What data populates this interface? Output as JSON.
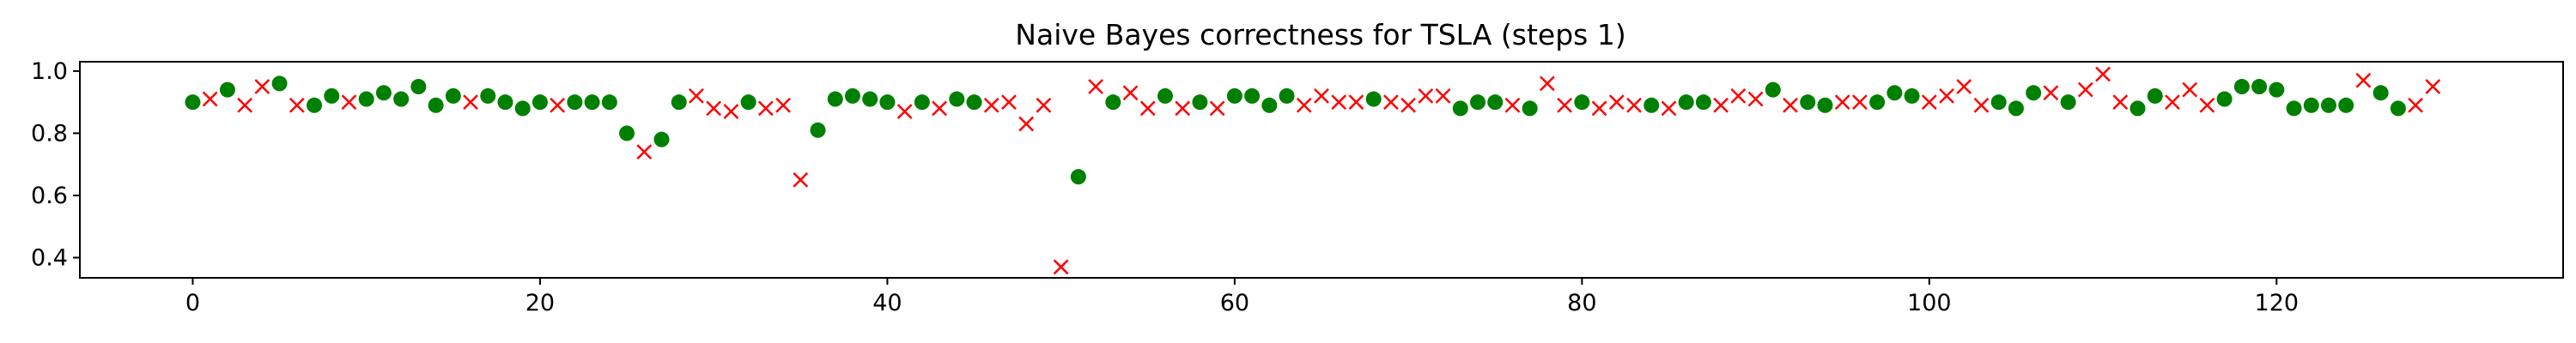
{
  "chart_data": {
    "type": "scatter",
    "title": "Naive Bayes correctness for TSLA (steps 1)",
    "xlabel": "",
    "ylabel": "",
    "xlim": [
      -6.5,
      136.5
    ],
    "ylim": [
      0.335,
      1.03
    ],
    "x_ticks": [
      0,
      20,
      40,
      60,
      80,
      100,
      120
    ],
    "y_ticks": [
      0.4,
      0.6,
      0.8,
      1.0
    ],
    "x_tick_labels": [
      "0",
      "20",
      "40",
      "60",
      "80",
      "100",
      "120"
    ],
    "y_tick_labels": [
      "0.4",
      "0.6",
      "0.8",
      "1.0"
    ],
    "grid": false,
    "legend": "none",
    "marker_colors": {
      "correct": "#008000",
      "incorrect": "#ff0000"
    },
    "points": [
      [
        0,
        0.9,
        "o"
      ],
      [
        1,
        0.91,
        "x"
      ],
      [
        2,
        0.94,
        "o"
      ],
      [
        3,
        0.89,
        "x"
      ],
      [
        4,
        0.95,
        "x"
      ],
      [
        5,
        0.96,
        "o"
      ],
      [
        6,
        0.89,
        "x"
      ],
      [
        7,
        0.89,
        "o"
      ],
      [
        8,
        0.92,
        "o"
      ],
      [
        9,
        0.9,
        "x"
      ],
      [
        10,
        0.91,
        "o"
      ],
      [
        11,
        0.93,
        "o"
      ],
      [
        12,
        0.91,
        "o"
      ],
      [
        13,
        0.95,
        "o"
      ],
      [
        14,
        0.89,
        "o"
      ],
      [
        15,
        0.92,
        "o"
      ],
      [
        16,
        0.9,
        "x"
      ],
      [
        17,
        0.92,
        "o"
      ],
      [
        18,
        0.9,
        "o"
      ],
      [
        19,
        0.88,
        "o"
      ],
      [
        20,
        0.9,
        "o"
      ],
      [
        21,
        0.89,
        "x"
      ],
      [
        22,
        0.9,
        "o"
      ],
      [
        23,
        0.9,
        "o"
      ],
      [
        24,
        0.9,
        "o"
      ],
      [
        25,
        0.8,
        "o"
      ],
      [
        26,
        0.74,
        "x"
      ],
      [
        27,
        0.78,
        "o"
      ],
      [
        28,
        0.9,
        "o"
      ],
      [
        29,
        0.92,
        "x"
      ],
      [
        30,
        0.88,
        "x"
      ],
      [
        31,
        0.87,
        "x"
      ],
      [
        32,
        0.9,
        "o"
      ],
      [
        33,
        0.88,
        "x"
      ],
      [
        34,
        0.89,
        "x"
      ],
      [
        35,
        0.65,
        "x"
      ],
      [
        36,
        0.81,
        "o"
      ],
      [
        37,
        0.91,
        "o"
      ],
      [
        38,
        0.92,
        "o"
      ],
      [
        39,
        0.91,
        "o"
      ],
      [
        40,
        0.9,
        "o"
      ],
      [
        41,
        0.87,
        "x"
      ],
      [
        42,
        0.9,
        "o"
      ],
      [
        43,
        0.88,
        "x"
      ],
      [
        44,
        0.91,
        "o"
      ],
      [
        45,
        0.9,
        "o"
      ],
      [
        46,
        0.89,
        "x"
      ],
      [
        47,
        0.9,
        "x"
      ],
      [
        48,
        0.83,
        "x"
      ],
      [
        49,
        0.89,
        "x"
      ],
      [
        50,
        0.37,
        "x"
      ],
      [
        51,
        0.66,
        "o"
      ],
      [
        52,
        0.95,
        "x"
      ],
      [
        53,
        0.9,
        "o"
      ],
      [
        54,
        0.93,
        "x"
      ],
      [
        55,
        0.88,
        "x"
      ],
      [
        56,
        0.92,
        "o"
      ],
      [
        57,
        0.88,
        "x"
      ],
      [
        58,
        0.9,
        "o"
      ],
      [
        59,
        0.88,
        "x"
      ],
      [
        60,
        0.92,
        "o"
      ],
      [
        61,
        0.92,
        "o"
      ],
      [
        62,
        0.89,
        "o"
      ],
      [
        63,
        0.92,
        "o"
      ],
      [
        64,
        0.89,
        "x"
      ],
      [
        65,
        0.92,
        "x"
      ],
      [
        66,
        0.9,
        "x"
      ],
      [
        67,
        0.9,
        "x"
      ],
      [
        68,
        0.91,
        "o"
      ],
      [
        69,
        0.9,
        "x"
      ],
      [
        70,
        0.89,
        "x"
      ],
      [
        71,
        0.92,
        "x"
      ],
      [
        72,
        0.92,
        "x"
      ],
      [
        73,
        0.88,
        "o"
      ],
      [
        74,
        0.9,
        "o"
      ],
      [
        75,
        0.9,
        "o"
      ],
      [
        76,
        0.89,
        "x"
      ],
      [
        77,
        0.88,
        "o"
      ],
      [
        78,
        0.96,
        "x"
      ],
      [
        79,
        0.89,
        "x"
      ],
      [
        80,
        0.9,
        "o"
      ],
      [
        81,
        0.88,
        "x"
      ],
      [
        82,
        0.9,
        "x"
      ],
      [
        83,
        0.89,
        "x"
      ],
      [
        84,
        0.89,
        "o"
      ],
      [
        85,
        0.88,
        "x"
      ],
      [
        86,
        0.9,
        "o"
      ],
      [
        87,
        0.9,
        "o"
      ],
      [
        88,
        0.89,
        "x"
      ],
      [
        89,
        0.92,
        "x"
      ],
      [
        90,
        0.91,
        "x"
      ],
      [
        91,
        0.94,
        "o"
      ],
      [
        92,
        0.89,
        "x"
      ],
      [
        93,
        0.9,
        "o"
      ],
      [
        94,
        0.89,
        "o"
      ],
      [
        95,
        0.9,
        "x"
      ],
      [
        96,
        0.9,
        "x"
      ],
      [
        97,
        0.9,
        "o"
      ],
      [
        98,
        0.93,
        "o"
      ],
      [
        99,
        0.92,
        "o"
      ],
      [
        100,
        0.9,
        "x"
      ],
      [
        101,
        0.92,
        "x"
      ],
      [
        102,
        0.95,
        "x"
      ],
      [
        103,
        0.89,
        "x"
      ],
      [
        104,
        0.9,
        "o"
      ],
      [
        105,
        0.88,
        "o"
      ],
      [
        106,
        0.93,
        "o"
      ],
      [
        107,
        0.93,
        "x"
      ],
      [
        108,
        0.9,
        "o"
      ],
      [
        109,
        0.94,
        "x"
      ],
      [
        110,
        0.99,
        "x"
      ],
      [
        111,
        0.9,
        "x"
      ],
      [
        112,
        0.88,
        "o"
      ],
      [
        113,
        0.92,
        "o"
      ],
      [
        114,
        0.9,
        "x"
      ],
      [
        115,
        0.94,
        "x"
      ],
      [
        116,
        0.89,
        "x"
      ],
      [
        117,
        0.91,
        "o"
      ],
      [
        118,
        0.95,
        "o"
      ],
      [
        119,
        0.95,
        "o"
      ],
      [
        120,
        0.94,
        "o"
      ],
      [
        121,
        0.88,
        "o"
      ],
      [
        122,
        0.89,
        "o"
      ],
      [
        123,
        0.89,
        "o"
      ],
      [
        124,
        0.89,
        "o"
      ],
      [
        125,
        0.97,
        "x"
      ],
      [
        126,
        0.93,
        "o"
      ],
      [
        127,
        0.88,
        "o"
      ],
      [
        128,
        0.89,
        "x"
      ],
      [
        129,
        0.95,
        "x"
      ]
    ]
  }
}
